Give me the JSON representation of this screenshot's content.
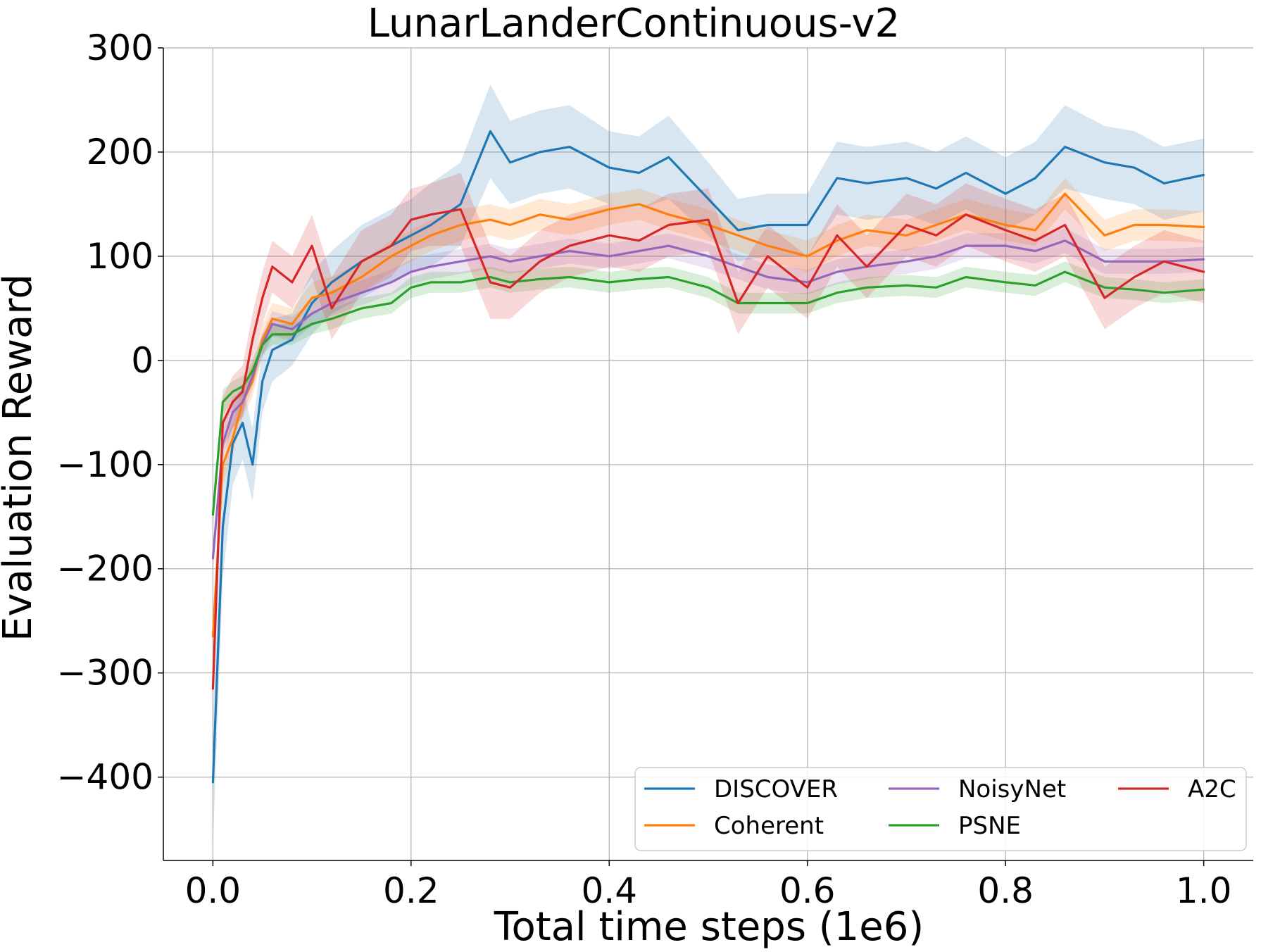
{
  "chart_data": {
    "type": "line",
    "title": "LunarLanderContinuous-v2",
    "xlabel": "Total time steps (1e6)",
    "ylabel": "Evaluation Reward",
    "xlim": [
      -0.05,
      1.05
    ],
    "ylim": [
      -480,
      300
    ],
    "xticks": [
      0.0,
      0.2,
      0.4,
      0.6,
      0.8,
      1.0
    ],
    "xtick_labels": [
      "0.0",
      "0.2",
      "0.4",
      "0.6",
      "0.8",
      "1.0"
    ],
    "yticks": [
      -400,
      -300,
      -200,
      -100,
      0,
      100,
      200,
      300
    ],
    "ytick_labels": [
      "−400",
      "−300",
      "−200",
      "−100",
      "0",
      "100",
      "200",
      "300"
    ],
    "grid": true,
    "legend": {
      "location": "lower right",
      "columns": 3
    },
    "x": [
      0.0,
      0.01,
      0.02,
      0.03,
      0.04,
      0.05,
      0.06,
      0.08,
      0.1,
      0.12,
      0.15,
      0.18,
      0.2,
      0.22,
      0.25,
      0.28,
      0.3,
      0.33,
      0.36,
      0.4,
      0.43,
      0.46,
      0.5,
      0.53,
      0.56,
      0.6,
      0.63,
      0.66,
      0.7,
      0.73,
      0.76,
      0.8,
      0.83,
      0.86,
      0.9,
      0.93,
      0.96,
      1.0
    ],
    "series": [
      {
        "name": "DISCOVER",
        "color": "#1f77b4",
        "values": [
          -405,
          -160,
          -80,
          -60,
          -100,
          -20,
          10,
          20,
          55,
          75,
          95,
          110,
          120,
          130,
          150,
          220,
          190,
          200,
          205,
          185,
          180,
          195,
          155,
          125,
          130,
          130,
          175,
          170,
          175,
          165,
          180,
          160,
          175,
          205,
          190,
          185,
          170,
          178
        ],
        "spread": [
          60,
          50,
          40,
          35,
          35,
          30,
          30,
          25,
          30,
          30,
          35,
          35,
          35,
          40,
          40,
          45,
          40,
          40,
          40,
          35,
          35,
          40,
          35,
          30,
          30,
          30,
          35,
          35,
          35,
          35,
          35,
          35,
          35,
          40,
          35,
          35,
          35,
          35
        ]
      },
      {
        "name": "Coherent",
        "color": "#ff7f0e",
        "values": [
          -265,
          -100,
          -75,
          -40,
          -20,
          20,
          40,
          35,
          60,
          65,
          80,
          100,
          110,
          120,
          130,
          135,
          130,
          140,
          135,
          145,
          150,
          140,
          130,
          120,
          110,
          100,
          115,
          125,
          120,
          130,
          140,
          130,
          125,
          160,
          120,
          130,
          130,
          128
        ],
        "spread": [
          20,
          20,
          15,
          15,
          15,
          15,
          15,
          15,
          15,
          15,
          15,
          15,
          15,
          15,
          15,
          15,
          15,
          15,
          15,
          15,
          15,
          15,
          15,
          15,
          15,
          15,
          15,
          15,
          15,
          15,
          15,
          15,
          15,
          15,
          15,
          15,
          15,
          15
        ]
      },
      {
        "name": "NoisyNet",
        "color": "#9467bd",
        "values": [
          -190,
          -80,
          -50,
          -40,
          -15,
          15,
          35,
          30,
          45,
          55,
          65,
          75,
          85,
          90,
          95,
          100,
          95,
          100,
          105,
          100,
          105,
          110,
          100,
          90,
          80,
          75,
          85,
          90,
          95,
          100,
          110,
          110,
          105,
          115,
          95,
          95,
          95,
          97
        ],
        "spread": [
          15,
          15,
          15,
          12,
          12,
          12,
          12,
          12,
          12,
          12,
          12,
          12,
          12,
          12,
          12,
          12,
          12,
          12,
          12,
          12,
          12,
          12,
          12,
          12,
          12,
          12,
          12,
          12,
          12,
          12,
          12,
          12,
          12,
          12,
          12,
          12,
          12,
          12
        ]
      },
      {
        "name": "PSNE",
        "color": "#2ca02c",
        "values": [
          -148,
          -40,
          -30,
          -25,
          -10,
          15,
          25,
          25,
          35,
          40,
          50,
          55,
          70,
          75,
          75,
          80,
          75,
          78,
          80,
          75,
          78,
          80,
          70,
          55,
          55,
          55,
          65,
          70,
          72,
          70,
          80,
          75,
          72,
          85,
          70,
          68,
          65,
          68
        ],
        "spread": [
          15,
          12,
          10,
          10,
          10,
          10,
          10,
          10,
          10,
          10,
          10,
          10,
          10,
          10,
          10,
          10,
          10,
          10,
          10,
          10,
          10,
          10,
          10,
          10,
          10,
          10,
          10,
          10,
          10,
          10,
          10,
          10,
          10,
          10,
          10,
          10,
          10,
          10
        ]
      },
      {
        "name": "A2C",
        "color": "#d62728",
        "values": [
          -315,
          -60,
          -40,
          -30,
          20,
          60,
          90,
          75,
          110,
          50,
          95,
          110,
          135,
          140,
          145,
          75,
          70,
          95,
          110,
          120,
          115,
          130,
          135,
          55,
          100,
          70,
          120,
          90,
          130,
          120,
          140,
          125,
          115,
          130,
          60,
          80,
          95,
          85
        ],
        "spread": [
          20,
          25,
          25,
          25,
          25,
          25,
          25,
          25,
          30,
          30,
          30,
          30,
          30,
          30,
          35,
          35,
          30,
          30,
          30,
          30,
          30,
          30,
          30,
          30,
          30,
          30,
          30,
          30,
          30,
          30,
          30,
          30,
          30,
          30,
          30,
          30,
          30,
          30
        ]
      }
    ]
  }
}
